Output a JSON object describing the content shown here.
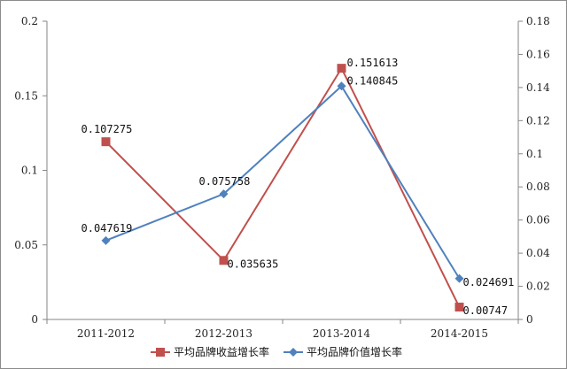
{
  "chart_data": {
    "type": "line",
    "categories": [
      "2011-2012",
      "2012-2013",
      "2013-2014",
      "2014-2015"
    ],
    "left_axis": {
      "ylim": [
        0,
        0.2
      ],
      "ticks": [
        "0",
        "0.05",
        "0.1",
        "0.15",
        "0.2"
      ],
      "tick_values": [
        0,
        0.05,
        0.1,
        0.15,
        0.2
      ]
    },
    "right_axis": {
      "ylim": [
        0,
        0.18
      ],
      "ticks": [
        "0",
        "0.02",
        "0.04",
        "0.06",
        "0.08",
        "0.1",
        "0.12",
        "0.14",
        "0.16",
        "0.18"
      ],
      "tick_values": [
        0,
        0.02,
        0.04,
        0.06,
        0.08,
        0.1,
        0.12,
        0.14,
        0.16,
        0.18
      ]
    },
    "series": [
      {
        "name": "平均品牌收益增长率",
        "axis": "right",
        "color": "#c0504d",
        "marker": "square",
        "values": [
          0.107275,
          0.035635,
          0.151613,
          0.00747
        ],
        "labels": [
          "0.107275",
          "0.035635",
          "0.151613",
          "0.00747"
        ]
      },
      {
        "name": "平均品牌价值增长率",
        "axis": "right",
        "color": "#4f81bd",
        "marker": "diamond",
        "values": [
          0.047619,
          0.075758,
          0.140845,
          0.024691
        ],
        "labels": [
          "0.047619",
          "0.075758",
          "0.140845",
          "0.024691"
        ]
      }
    ],
    "legend_position": "bottom",
    "grid": false
  }
}
